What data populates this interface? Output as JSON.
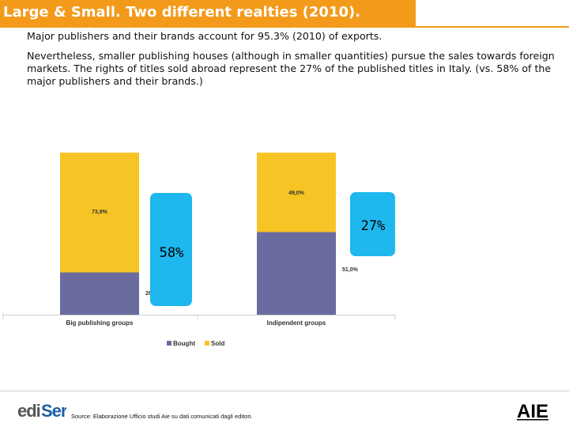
{
  "slide": {
    "title": "Large & Small. Two different realties (2010).",
    "paragraph1": "Major publishers and their brands account for 95.3% (2010) of exports.",
    "paragraph2": "Nevertheless, smaller publishing houses (although in smaller quantities) pursue the sales towards foreign markets. The rights of titles sold abroad represent the 27% of the published titles in Italy. (vs. 58% of the major publishers and their brands.)",
    "source": "Source: Elaborazione Ufficio studi Aie su dati comunicati dagli editori.",
    "callouts": [
      {
        "label": "58%"
      },
      {
        "label": "27%"
      }
    ],
    "logos": {
      "left": "ediSer",
      "right": "AIE"
    }
  },
  "colors": {
    "title_bar": "#f39a1a",
    "bought": "#6a6b9e",
    "sold": "#f7c425",
    "callout": "#1eb7ee"
  },
  "chart_data": {
    "type": "bar",
    "stacked": true,
    "categories": [
      "Big publishing groups",
      "Indipendent groups"
    ],
    "series": [
      {
        "name": "Bought",
        "values": [
          26.1,
          51.0
        ],
        "labels": [
          "26,1%",
          "51,0%"
        ]
      },
      {
        "name": "Sold",
        "values": [
          73.9,
          49.0
        ],
        "labels": [
          "73,9%",
          "49,0%"
        ]
      }
    ],
    "ylim": [
      0,
      100
    ],
    "legend": "bottom"
  }
}
